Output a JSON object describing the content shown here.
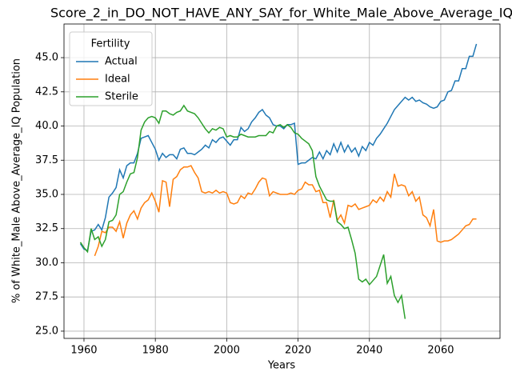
{
  "chart_data": {
    "type": "line",
    "title": "Score_2_in_DO_NOT_HAVE_ANY_SAY_for_White_Male_Above_Average_IQ",
    "x_label": "Years",
    "y_label": "% of White_Male Above_Average_IQ Population",
    "x": [
      1959,
      1960,
      1961,
      1962,
      1963,
      1964,
      1965,
      1966,
      1967,
      1968,
      1969,
      1970,
      1971,
      1972,
      1973,
      1974,
      1975,
      1976,
      1977,
      1978,
      1979,
      1980,
      1981,
      1982,
      1983,
      1984,
      1985,
      1986,
      1987,
      1988,
      1989,
      1990,
      1991,
      1992,
      1993,
      1994,
      1995,
      1996,
      1997,
      1998,
      1999,
      2000,
      2001,
      2002,
      2003,
      2004,
      2005,
      2006,
      2007,
      2008,
      2009,
      2010,
      2011,
      2012,
      2013,
      2014,
      2015,
      2016,
      2017,
      2018,
      2019,
      2020,
      2021,
      2022,
      2023,
      2024,
      2025,
      2026,
      2027,
      2028,
      2029,
      2030,
      2031,
      2032,
      2033,
      2034,
      2035,
      2036,
      2037,
      2038,
      2039,
      2040,
      2041,
      2042,
      2043,
      2044,
      2045,
      2046,
      2047,
      2048,
      2049,
      2050,
      2051,
      2052,
      2053,
      2054,
      2055,
      2056,
      2057,
      2058,
      2059,
      2060,
      2061,
      2062,
      2063,
      2064,
      2065,
      2066,
      2067,
      2068,
      2069,
      2070
    ],
    "series": [
      {
        "name": "Actual",
        "color": "#1f77b4",
        "values": [
          31.4,
          31.0,
          30.9,
          32.3,
          32.4,
          32.8,
          32.4,
          33.3,
          34.8,
          35.1,
          35.5,
          36.8,
          36.2,
          37.1,
          37.3,
          37.3,
          38.0,
          39.1,
          39.2,
          39.3,
          38.8,
          38.3,
          37.5,
          38.0,
          37.7,
          37.9,
          37.9,
          37.6,
          38.3,
          38.4,
          38.0,
          38.0,
          37.9,
          38.1,
          38.3,
          38.6,
          38.4,
          39.0,
          38.8,
          39.1,
          39.2,
          38.9,
          38.6,
          39.0,
          39.0,
          39.9,
          39.6,
          39.8,
          40.3,
          40.6,
          41.0,
          41.2,
          40.8,
          40.6,
          40.1,
          40.0,
          40.0,
          39.8,
          40.1,
          40.1,
          40.2,
          37.2,
          37.3,
          37.3,
          37.5,
          37.7,
          37.6,
          38.1,
          37.6,
          38.2,
          37.9,
          38.7,
          38.1,
          38.8,
          38.1,
          38.6,
          38.1,
          38.4,
          37.8,
          38.5,
          38.2,
          38.8,
          38.6,
          39.1,
          39.4,
          39.8,
          40.2,
          40.7,
          41.2,
          41.5,
          41.8,
          42.1,
          41.9,
          42.1,
          41.8,
          41.9,
          41.7,
          41.6,
          41.4,
          41.3,
          41.4,
          41.8,
          41.9,
          42.5,
          42.6,
          43.3,
          43.3,
          44.2,
          44.2,
          45.1,
          45.1,
          46.0
        ]
      },
      {
        "name": "Ideal",
        "color": "#ff7f0e",
        "values": [
          null,
          null,
          null,
          null,
          30.5,
          31.2,
          32.3,
          32.2,
          32.6,
          32.6,
          32.3,
          33.0,
          31.8,
          32.9,
          33.5,
          33.8,
          33.2,
          34.0,
          34.4,
          34.6,
          35.1,
          34.5,
          33.7,
          36.0,
          35.9,
          34.1,
          36.1,
          36.3,
          36.8,
          37.0,
          37.0,
          37.1,
          36.6,
          36.2,
          35.2,
          35.1,
          35.2,
          35.1,
          35.3,
          35.1,
          35.2,
          35.1,
          34.4,
          34.3,
          34.4,
          34.9,
          34.7,
          35.1,
          35.0,
          35.4,
          35.9,
          36.2,
          36.1,
          34.9,
          35.2,
          35.1,
          35.0,
          35.0,
          35.0,
          35.1,
          35.0,
          35.3,
          35.4,
          35.9,
          35.7,
          35.7,
          35.2,
          35.3,
          34.4,
          34.4,
          33.3,
          34.6,
          33.1,
          33.5,
          32.9,
          34.2,
          34.1,
          34.3,
          33.9,
          34.0,
          34.1,
          34.2,
          34.6,
          34.4,
          34.8,
          34.5,
          35.2,
          34.8,
          36.5,
          35.6,
          35.7,
          35.6,
          34.9,
          35.2,
          34.5,
          34.8,
          33.5,
          33.3,
          32.7,
          33.9,
          31.6,
          31.5,
          31.6,
          31.6,
          31.7,
          31.9,
          32.1,
          32.4,
          32.7,
          32.8,
          33.2,
          33.2
        ]
      },
      {
        "name": "Sterile",
        "color": "#2ca02c",
        "values": [
          31.5,
          31.1,
          30.8,
          32.5,
          31.7,
          31.9,
          31.2,
          31.7,
          33.0,
          33.1,
          33.5,
          35.0,
          35.2,
          35.9,
          36.5,
          36.6,
          37.7,
          39.7,
          40.3,
          40.6,
          40.7,
          40.6,
          40.2,
          41.1,
          41.1,
          40.9,
          40.8,
          41.0,
          41.1,
          41.5,
          41.1,
          41.0,
          40.9,
          40.6,
          40.2,
          39.8,
          39.5,
          39.8,
          39.7,
          39.9,
          39.8,
          39.2,
          39.3,
          39.2,
          39.2,
          39.4,
          39.3,
          39.2,
          39.2,
          39.2,
          39.3,
          39.3,
          39.3,
          39.6,
          39.5,
          40.0,
          40.1,
          39.9,
          40.1,
          39.9,
          39.5,
          39.4,
          39.1,
          38.9,
          38.7,
          38.2,
          36.3,
          35.6,
          35.1,
          34.6,
          34.5,
          34.5,
          33.0,
          32.8,
          32.5,
          32.6,
          31.7,
          30.7,
          28.8,
          28.6,
          28.8,
          28.4,
          28.7,
          29.0,
          29.8,
          30.6,
          28.5,
          29.0,
          27.6,
          27.1,
          27.6,
          25.9,
          null,
          null,
          null,
          null,
          null,
          null,
          null,
          null,
          null,
          null,
          null,
          null,
          null,
          null,
          null,
          null,
          null,
          null,
          null,
          null
        ]
      }
    ],
    "xlim": [
      1954.4,
      2076.6
    ],
    "ylim": [
      24.47,
      47.46
    ],
    "xticks": [
      1960,
      1980,
      2000,
      2020,
      2040,
      2060
    ],
    "yticks": [
      {
        "value": 25,
        "label": "25.0"
      },
      27.5,
      {
        "value": 30,
        "label": "30.0"
      },
      32.5,
      {
        "value": 35,
        "label": "35.0"
      },
      37.5,
      {
        "value": 40,
        "label": "40.0"
      },
      42.5,
      {
        "value": 45,
        "label": "45.0"
      }
    ],
    "grid": true,
    "legend": {
      "title": "Fertility",
      "position": "upper left"
    }
  }
}
